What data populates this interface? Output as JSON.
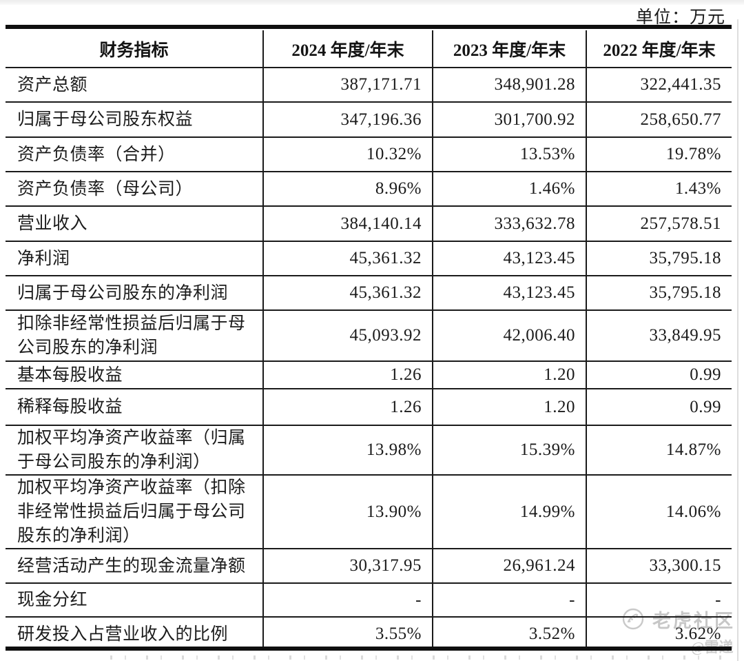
{
  "unit_label": "单位：万元",
  "table": {
    "columns": [
      "财务指标",
      "2024 年度/年末",
      "2023 年度/年末",
      "2022 年度/年末"
    ],
    "rows": [
      {
        "label": "资产总额",
        "values": [
          "387,171.71",
          "348,901.28",
          "322,441.35"
        ]
      },
      {
        "label": "归属于母公司股东权益",
        "values": [
          "347,196.36",
          "301,700.92",
          "258,650.77"
        ]
      },
      {
        "label": "资产负债率（合并）",
        "values": [
          "10.32%",
          "13.53%",
          "19.78%"
        ]
      },
      {
        "label": "资产负债率（母公司）",
        "values": [
          "8.96%",
          "1.46%",
          "1.43%"
        ]
      },
      {
        "label": "营业收入",
        "values": [
          "384,140.14",
          "333,632.78",
          "257,578.51"
        ]
      },
      {
        "label": "净利润",
        "values": [
          "45,361.32",
          "43,123.45",
          "35,795.18"
        ]
      },
      {
        "label": "归属于母公司股东的净利润",
        "values": [
          "45,361.32",
          "43,123.45",
          "35,795.18"
        ]
      },
      {
        "label": "扣除非经常性损益后归属于母\n公司股东的净利润",
        "values": [
          "45,093.92",
          "42,006.40",
          "33,849.95"
        ]
      },
      {
        "label": "基本每股收益",
        "values": [
          "1.26",
          "1.20",
          "0.99"
        ]
      },
      {
        "label": "稀释每股收益",
        "values": [
          "1.26",
          "1.20",
          "0.99"
        ]
      },
      {
        "label": "加权平均净资产收益率（归属\n于母公司股东的净利润）",
        "values": [
          "13.98%",
          "15.39%",
          "14.87%"
        ]
      },
      {
        "label": "加权平均净资产收益率（扣除\n非经常性损益后归属于母公司\n股东的净利润）",
        "values": [
          "13.90%",
          "14.99%",
          "14.06%"
        ]
      },
      {
        "label": "经营活动产生的现金流量净额",
        "values": [
          "30,317.95",
          "26,961.24",
          "33,300.15"
        ]
      },
      {
        "label": "现金分红",
        "values": [
          "-",
          "-",
          "-"
        ]
      },
      {
        "label": "研发投入占营业收入的比例",
        "values": [
          "3.55%",
          "3.52%",
          "3.62%"
        ]
      }
    ]
  },
  "watermark": {
    "community": "老虎社区",
    "author": "@雷递"
  },
  "colors": {
    "line": "#1a1a1a",
    "text": "#1b1b1b",
    "watermark": "#c7c7c7"
  }
}
